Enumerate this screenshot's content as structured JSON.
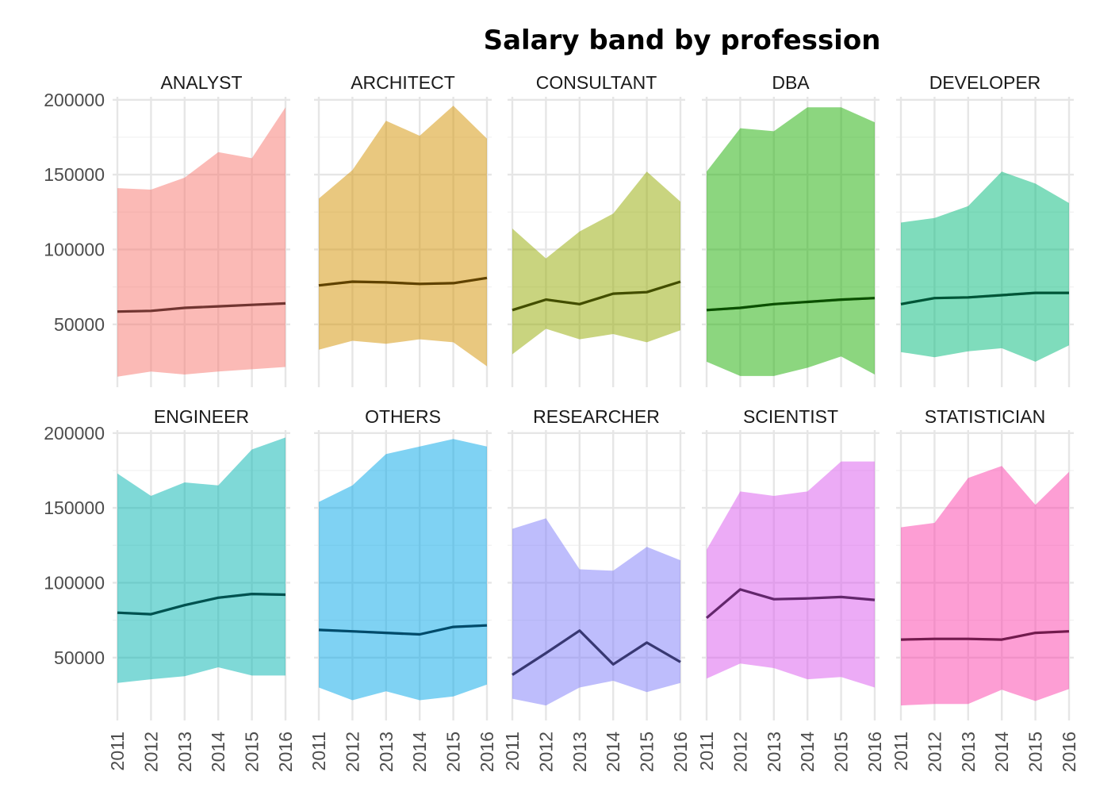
{
  "chart_data": {
    "type": "area",
    "title": "Salary band by profession",
    "xlabel": "",
    "ylabel": "",
    "x": [
      2011,
      2012,
      2013,
      2014,
      2015,
      2016
    ],
    "x_tick_labels": [
      "2011",
      "2012",
      "2013",
      "2014",
      "2015",
      "2016"
    ],
    "y_ticks": [
      50000,
      100000,
      150000,
      200000
    ],
    "y_tick_labels": [
      "50000",
      "100000",
      "150000",
      "200000"
    ],
    "ylim": [
      8000,
      202000
    ],
    "grid": true,
    "legend": "none",
    "facet_layout": "2 rows x 5 columns",
    "band_opacity": 0.5,
    "panels": [
      {
        "label": "ANALYST",
        "color": "#F8766D",
        "min": [
          15000,
          18500,
          16500,
          18500,
          20000,
          21500
        ],
        "max": [
          141000,
          140000,
          148000,
          165000,
          161000,
          195000
        ],
        "median": [
          58500,
          59000,
          61000,
          62000,
          63000,
          64000
        ]
      },
      {
        "label": "ARCHITECT",
        "color": "#D39200",
        "min": [
          33000,
          39000,
          37000,
          40000,
          38000,
          22000
        ],
        "max": [
          134000,
          153000,
          186000,
          176000,
          196000,
          174000
        ],
        "median": [
          76000,
          78500,
          78000,
          77000,
          77500,
          81000
        ]
      },
      {
        "label": "CONSULTANT",
        "color": "#93AA00",
        "min": [
          30000,
          47000,
          40000,
          43500,
          38000,
          46000
        ],
        "max": [
          114000,
          94000,
          112000,
          124000,
          152000,
          132000
        ],
        "median": [
          59500,
          66500,
          63500,
          70500,
          71500,
          78500
        ]
      },
      {
        "label": "DBA",
        "color": "#1AAD00",
        "min": [
          25000,
          15500,
          15500,
          21000,
          28500,
          16500
        ],
        "max": [
          152000,
          181000,
          179000,
          195000,
          195000,
          185000
        ],
        "median": [
          59500,
          61000,
          63500,
          65000,
          66500,
          67500
        ]
      },
      {
        "label": "DEVELOPER",
        "color": "#00BA7A",
        "min": [
          31500,
          28000,
          32000,
          34000,
          25000,
          36000
        ],
        "max": [
          118000,
          121000,
          129000,
          152000,
          144000,
          131000
        ],
        "median": [
          63500,
          67500,
          68000,
          69500,
          71000,
          71000
        ]
      },
      {
        "label": "ENGINEER",
        "color": "#00B3B0",
        "min": [
          33000,
          35500,
          37500,
          43500,
          38000,
          38000
        ],
        "max": [
          173000,
          158000,
          167000,
          165000,
          189000,
          197000
        ],
        "median": [
          80000,
          79000,
          85000,
          90000,
          92500,
          92000
        ]
      },
      {
        "label": "OTHERS",
        "color": "#00A5E8",
        "min": [
          30000,
          21500,
          27500,
          21500,
          24000,
          32000
        ],
        "max": [
          154000,
          165000,
          186000,
          191000,
          196000,
          191000
        ],
        "median": [
          68500,
          67500,
          66500,
          65500,
          70500,
          71500
        ]
      },
      {
        "label": "RESEARCHER",
        "color": "#7D7CFA",
        "min": [
          22500,
          18000,
          30000,
          34500,
          27000,
          33000
        ],
        "max": [
          136000,
          143000,
          109000,
          108000,
          124000,
          115000
        ],
        "median": [
          38500,
          53000,
          68000,
          45500,
          60000,
          47000
        ]
      },
      {
        "label": "SCIENTIST",
        "color": "#DA57EE",
        "min": [
          36000,
          46000,
          43000,
          35500,
          37000,
          30000
        ],
        "max": [
          122000,
          161000,
          158000,
          161000,
          181000,
          181000
        ],
        "median": [
          76500,
          95500,
          89000,
          89500,
          90500,
          88500
        ]
      },
      {
        "label": "STATISTICIAN",
        "color": "#FB3DAA",
        "min": [
          18000,
          19000,
          19000,
          28500,
          21000,
          29000
        ],
        "max": [
          137000,
          140000,
          170000,
          178000,
          152000,
          174000
        ],
        "median": [
          62000,
          62500,
          62500,
          62000,
          66500,
          67500
        ]
      }
    ]
  }
}
